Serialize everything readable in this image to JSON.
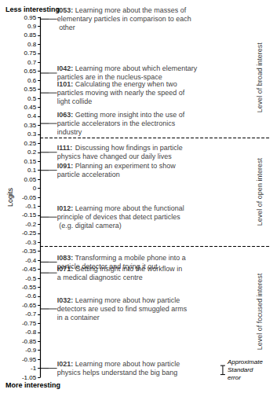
{
  "chart_data": {
    "type": "scatter",
    "top_label": "Less interesting",
    "bottom_label": "More interesting",
    "ylabel": "Logits",
    "ylim": [
      -1.05,
      0.95
    ],
    "yticks": [
      0.95,
      0.9,
      0.85,
      0.8,
      0.75,
      0.7,
      0.65,
      0.6,
      0.55,
      0.5,
      0.45,
      0.4,
      0.35,
      0.3,
      0.25,
      0.2,
      0.15,
      0.1,
      0.05,
      0,
      -0.05,
      -0.1,
      -0.15,
      -0.2,
      -0.25,
      -0.3,
      -0.35,
      -0.4,
      -0.45,
      -0.5,
      -0.55,
      -0.6,
      -0.65,
      -0.7,
      -0.75,
      -0.8,
      -0.85,
      -0.9,
      -0.95,
      -1,
      -1.05
    ],
    "grid": false,
    "items": [
      {
        "label": "I053: Learning more about the masses of elementary particles in comparison to each other",
        "value": 0.94
      },
      {
        "label": "I042: Learning more about which elementary particles are in the nucleus-space",
        "value": 0.64
      },
      {
        "label": "I101: Calculating the energy when two particles moving with nearly the speed of light collide",
        "value": 0.53
      },
      {
        "label": "I063: Getting more insight into the use of particle accelerators in the electronics industry",
        "value": 0.36
      },
      {
        "label": "I111: Discussing how findings in particle physics have changed our daily lives",
        "value": 0.2
      },
      {
        "label": "I091: Planning an experiment to show particle acceleration",
        "value": 0.1
      },
      {
        "label": "I012: Learning more about the functional principle of devices that detect particles (e.g. digital camera)",
        "value": -0.16
      },
      {
        "label": "I083: Transforming a mobile phone into a particle detector and trying it out",
        "value": -0.41
      },
      {
        "label": "I071: Getting insight into the workflow in a medical diagnostic centre",
        "value": -0.47
      },
      {
        "label": "I032: Learning more about how particle detectors are used to find smuggled arms in a container",
        "value": -0.67
      },
      {
        "label": "I021: Learning more about how particle physics helps understand the big bang",
        "value": -1.0
      }
    ],
    "boundaries": [
      0.28,
      -0.32
    ],
    "levels": [
      "Level of broad interest",
      "Level of open interest",
      "Level of focused interest"
    ],
    "standard_error": {
      "label": "Approximate Standard error",
      "value": -1.01,
      "error": 0.025
    }
  }
}
